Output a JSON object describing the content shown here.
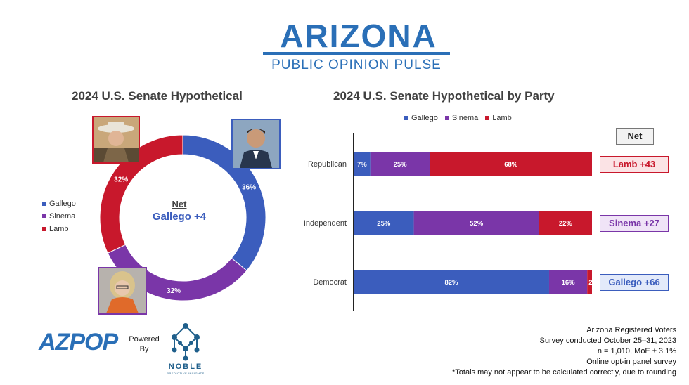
{
  "header": {
    "title": "ARIZONA",
    "subtitle": "PUBLIC OPINION PULSE"
  },
  "colors": {
    "gallego": "#3b5dbd",
    "sinema": "#7a36a8",
    "lamb": "#c8182c",
    "brand": "#2a6fb7"
  },
  "donut": {
    "title": "2024 U.S. Senate Hypothetical",
    "net_label": "Net",
    "net_value": "Gallego +4",
    "slice_labels": [
      "36%",
      "32%",
      "32%"
    ],
    "legend": [
      "Gallego",
      "Sinema",
      "Lamb"
    ]
  },
  "bars": {
    "title": "2024 U.S. Senate Hypothetical by Party",
    "legend": [
      "Gallego",
      "Sinema",
      "Lamb"
    ],
    "net_header": "Net",
    "rows": [
      {
        "label": "Republican",
        "labels": [
          "7%",
          "25%",
          "68%"
        ],
        "net": "Lamb +43"
      },
      {
        "label": "Independent",
        "labels": [
          "25%",
          "52%",
          "22%"
        ],
        "net": "Sinema +27"
      },
      {
        "label": "Democrat",
        "labels": [
          "82%",
          "16%",
          "2%"
        ],
        "net": "Gallego +66"
      }
    ]
  },
  "chart_data": [
    {
      "type": "pie",
      "title": "2024 U.S. Senate Hypothetical",
      "categories": [
        "Gallego",
        "Sinema",
        "Lamb"
      ],
      "values": [
        36,
        32,
        32
      ],
      "legend": "left"
    },
    {
      "type": "bar",
      "title": "2024 U.S. Senate Hypothetical by Party",
      "categories": [
        "Republican",
        "Independent",
        "Democrat"
      ],
      "series": [
        {
          "name": "Gallego",
          "values": [
            7,
            25,
            82
          ]
        },
        {
          "name": "Sinema",
          "values": [
            25,
            52,
            16
          ]
        },
        {
          "name": "Lamb",
          "values": [
            68,
            22,
            2
          ]
        }
      ],
      "stacked": true,
      "orientation": "horizontal",
      "legend": "top"
    }
  ],
  "footer": {
    "logo": "AZPOP",
    "powered": "Powered By",
    "noble": "NOBLE",
    "noble_sub": "PREDICTIVE INSIGHTS",
    "lines": [
      "Arizona Registered Voters",
      "Survey conducted October 25–31, 2023",
      "n = 1,010, MoE ± 3.1%",
      "Online opt-in panel survey",
      "*Totals may not appear to be calculated correctly, due to rounding"
    ]
  }
}
